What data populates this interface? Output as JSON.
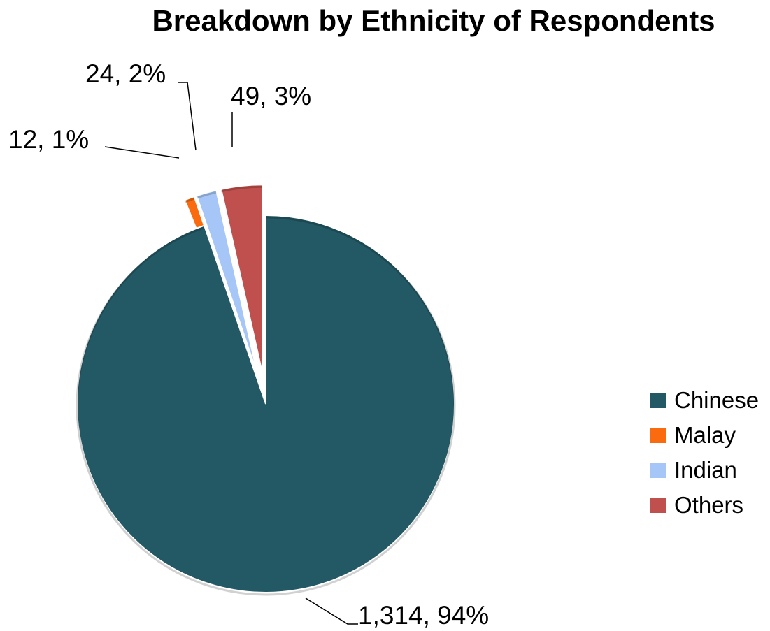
{
  "chart_data": {
    "type": "pie",
    "title": "Breakdown by Ethnicity of Respondents",
    "series": [
      {
        "name": "Chinese",
        "value": 1314,
        "percent": 94,
        "label": "1,314, 94%",
        "color": "#235865"
      },
      {
        "name": "Malay",
        "value": 12,
        "percent": 1,
        "label": "12, 1%",
        "color": "#f96b0e"
      },
      {
        "name": "Indian",
        "value": 24,
        "percent": 2,
        "label": "24, 2%",
        "color": "#a6c6f7"
      },
      {
        "name": "Others",
        "value": 49,
        "percent": 3,
        "label": "49, 3%",
        "color": "#c0504d"
      }
    ],
    "legend_position": "right",
    "exploded": true
  }
}
